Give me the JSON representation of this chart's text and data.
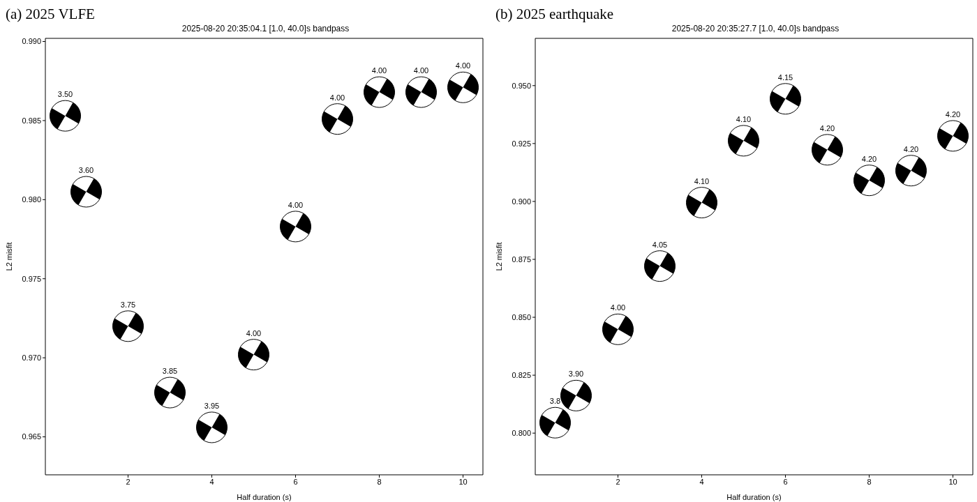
{
  "chart_data": [
    {
      "type": "scatter",
      "title": "(a) 2025 VLFE",
      "subtitle": "2025-08-20 20:35:04.1 [1.0, 40.0]s bandpass",
      "xlabel": "Half duration (s)",
      "ylabel": "L2 misfit",
      "x": [
        0.5,
        1,
        2,
        3,
        4,
        5,
        6,
        7,
        8,
        9,
        10
      ],
      "values": [
        0.9853,
        0.9805,
        0.972,
        0.9678,
        0.9656,
        0.9702,
        0.9783,
        0.9851,
        0.9868,
        0.9868,
        0.9871
      ],
      "annotations": [
        "3.50",
        "3.60",
        "3.75",
        "3.85",
        "3.95",
        "4.00",
        "4.00",
        "4.00",
        "4.00",
        "4.00",
        "4.00"
      ],
      "color": "#000000",
      "marker": "circle",
      "xlim": [
        0.025,
        10.475
      ],
      "xticks": [
        2,
        4,
        6,
        8,
        10
      ],
      "ylim": [
        0.9626,
        0.9902
      ],
      "yticks": [
        0.965,
        {
          "value": 0.97,
          "label": "0.970"
        },
        0.975,
        {
          "value": 0.98,
          "label": "0.980"
        },
        0.985,
        {
          "value": 0.99,
          "label": "0.990"
        }
      ],
      "grid": false,
      "legend": false
    },
    {
      "type": "scatter",
      "title": "(b) 2025 earthquake",
      "subtitle": "2025-08-20 20:35:27.7 [1.0, 40.0]s bandpass",
      "xlabel": "Half duration (s)",
      "ylabel": "L2 misfit",
      "x": [
        0.5,
        1,
        2,
        3,
        4,
        5,
        6,
        7,
        8,
        9,
        10
      ],
      "values": [
        0.8045,
        0.8162,
        0.8448,
        0.8721,
        0.8995,
        0.9262,
        0.9443,
        0.9223,
        0.9091,
        0.9133,
        0.9283
      ],
      "annotations": [
        "3.8",
        "3.90",
        "4.00",
        "4.05",
        "4.10",
        "4.10",
        "4.15",
        "4.20",
        "4.20",
        "4.20",
        "4.20"
      ],
      "color": "#000000",
      "marker": "circle",
      "xlim": [
        0.025,
        10.475
      ],
      "xticks": [
        2,
        4,
        6,
        8,
        10
      ],
      "ylim": [
        0.782,
        0.9704
      ],
      "yticks": [
        {
          "value": 0.8,
          "label": "0.800"
        },
        0.825,
        {
          "value": 0.85,
          "label": "0.850"
        },
        0.875,
        {
          "value": 0.9,
          "label": "0.900"
        },
        0.925,
        {
          "value": 0.95,
          "label": "0.950"
        }
      ],
      "grid": false,
      "legend": false
    }
  ]
}
